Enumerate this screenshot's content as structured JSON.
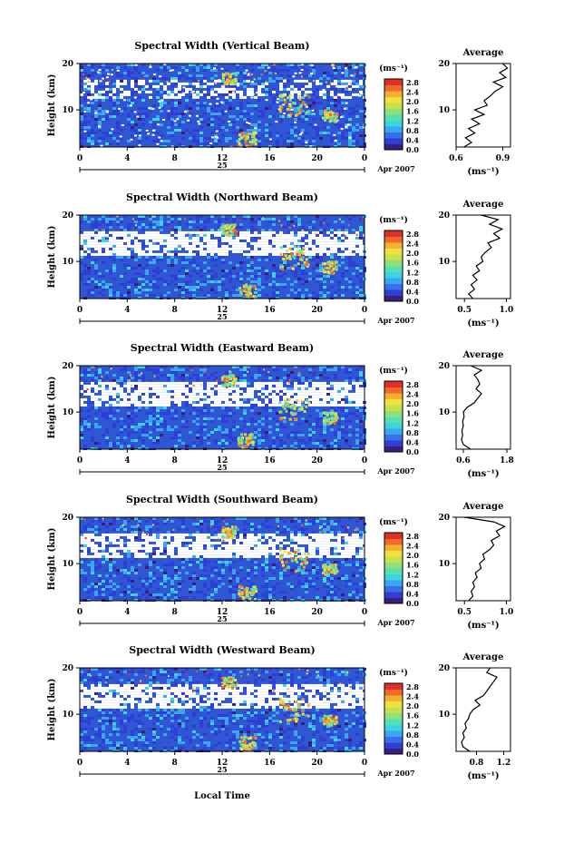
{
  "figure": {
    "xlabel_bottom": "Local Time",
    "colors": {
      "scale": [
        "#3a1f7a",
        "#2f3fd6",
        "#3a6fe6",
        "#3aa6f0",
        "#3fd2e0",
        "#55e0b0",
        "#8fe07a",
        "#c8e050",
        "#f0e040",
        "#f4b030",
        "#f06a2a",
        "#e0302a"
      ],
      "background_field": "#2f57d4",
      "line": "#000000"
    }
  },
  "chart_data": [
    {
      "type": "heatmap",
      "title": "Spectral Width (Vertical Beam)",
      "ylabel": "Height (km)",
      "yticks": [
        "20",
        "10"
      ],
      "xticks": [
        "0",
        "4",
        "8",
        "12",
        "16",
        "20",
        "0"
      ],
      "date_day": "25",
      "date_label": "Apr 2007",
      "xlim": [
        0,
        24
      ],
      "ylim": [
        2,
        20
      ],
      "colorbar": {
        "unit": "(ms⁻¹)",
        "ticks": [
          "2.8",
          "2.4",
          "2.0",
          "1.6",
          "1.2",
          "0.8",
          "0.4",
          "0.0"
        ]
      },
      "average_profile": {
        "title": "Average",
        "xlabel": "(ms⁻¹)",
        "xticks": [
          "0.6",
          "0.9"
        ],
        "xlim": [
          0.6,
          0.95
        ],
        "yticks": [
          "20",
          "10"
        ],
        "heights": [
          2,
          3,
          4,
          5,
          6,
          7,
          8,
          9,
          10,
          11,
          12,
          13,
          14,
          15,
          16,
          17,
          18,
          19,
          20
        ],
        "values": [
          0.65,
          0.7,
          0.66,
          0.72,
          0.68,
          0.75,
          0.7,
          0.78,
          0.72,
          0.8,
          0.78,
          0.82,
          0.85,
          0.9,
          0.84,
          0.92,
          0.88,
          0.93,
          0.9
        ]
      }
    },
    {
      "type": "heatmap",
      "title": "Spectral Width (Northward Beam)",
      "ylabel": "Height (km)",
      "yticks": [
        "20",
        "10"
      ],
      "xticks": [
        "0",
        "4",
        "8",
        "12",
        "16",
        "20",
        "0"
      ],
      "date_day": "25",
      "date_label": "Apr 2007",
      "xlim": [
        0,
        24
      ],
      "ylim": [
        2,
        20
      ],
      "colorbar": {
        "unit": "(ms⁻¹)",
        "ticks": [
          "2.8",
          "2.4",
          "2.0",
          "1.6",
          "1.2",
          "0.8",
          "0.4",
          "0.0"
        ]
      },
      "average_profile": {
        "title": "Average",
        "xlabel": "(ms⁻¹)",
        "xticks": [
          "0.5",
          "1.0"
        ],
        "xlim": [
          0.4,
          1.05
        ],
        "yticks": [
          "20",
          "10"
        ],
        "heights": [
          2,
          3,
          4,
          5,
          6,
          7,
          8,
          9,
          10,
          11,
          12,
          13,
          14,
          15,
          16,
          17,
          18,
          19,
          20
        ],
        "values": [
          0.6,
          0.55,
          0.62,
          0.58,
          0.65,
          0.6,
          0.68,
          0.64,
          0.72,
          0.7,
          0.75,
          0.82,
          0.78,
          0.92,
          0.85,
          0.95,
          0.8,
          0.9,
          0.7
        ]
      }
    },
    {
      "type": "heatmap",
      "title": "Spectral Width (Eastward Beam)",
      "ylabel": "Height (km)",
      "yticks": [
        "20",
        "10"
      ],
      "xticks": [
        "0",
        "4",
        "8",
        "12",
        "16",
        "20",
        "0"
      ],
      "date_day": "25",
      "date_label": "Apr 2007",
      "xlim": [
        0,
        24
      ],
      "ylim": [
        2,
        20
      ],
      "colorbar": {
        "unit": "(ms⁻¹)",
        "ticks": [
          "2.8",
          "2.4",
          "2.0",
          "1.6",
          "1.2",
          "0.8",
          "0.4",
          "0.0"
        ]
      },
      "average_profile": {
        "title": "Average",
        "xlabel": "(ms⁻¹)",
        "xticks": [
          "0.6",
          "1.8"
        ],
        "xlim": [
          0.4,
          1.9
        ],
        "yticks": [
          "20",
          "10"
        ],
        "heights": [
          2,
          3,
          4,
          5,
          6,
          7,
          8,
          9,
          10,
          11,
          12,
          13,
          14,
          15,
          16,
          17,
          18,
          19,
          20
        ],
        "values": [
          0.8,
          0.6,
          0.55,
          0.58,
          0.56,
          0.6,
          0.58,
          0.62,
          0.6,
          0.7,
          0.9,
          1.0,
          1.1,
          0.95,
          1.05,
          1.0,
          0.9,
          1.1,
          0.8
        ]
      }
    },
    {
      "type": "heatmap",
      "title": "Spectral Width (Southward Beam)",
      "ylabel": "Height (km)",
      "yticks": [
        "20",
        "10"
      ],
      "xticks": [
        "0",
        "4",
        "8",
        "12",
        "16",
        "20",
        "0"
      ],
      "date_day": "25",
      "date_label": "Apr 2007",
      "xlim": [
        0,
        24
      ],
      "ylim": [
        2,
        20
      ],
      "colorbar": {
        "unit": "(ms⁻¹)",
        "ticks": [
          "2.8",
          "2.4",
          "2.0",
          "1.6",
          "1.2",
          "0.8",
          "0.4",
          "0.0"
        ]
      },
      "average_profile": {
        "title": "Average",
        "xlabel": "(ms⁻¹)",
        "xticks": [
          "0.5",
          "1.0"
        ],
        "xlim": [
          0.4,
          1.05
        ],
        "yticks": [
          "20",
          "10"
        ],
        "heights": [
          2,
          3,
          4,
          5,
          6,
          7,
          8,
          9,
          10,
          11,
          12,
          13,
          14,
          15,
          16,
          17,
          18,
          19,
          20
        ],
        "values": [
          0.55,
          0.6,
          0.58,
          0.62,
          0.6,
          0.65,
          0.63,
          0.7,
          0.68,
          0.74,
          0.72,
          0.8,
          0.85,
          0.82,
          0.92,
          0.88,
          0.98,
          0.85,
          0.5
        ]
      }
    },
    {
      "type": "heatmap",
      "title": "Spectral Width (Westward Beam)",
      "ylabel": "Height (km)",
      "yticks": [
        "20",
        "10"
      ],
      "xticks": [
        "0",
        "4",
        "8",
        "12",
        "16",
        "20",
        "0"
      ],
      "date_day": "25",
      "date_label": "Apr 2007",
      "xlim": [
        0,
        24
      ],
      "ylim": [
        2,
        20
      ],
      "colorbar": {
        "unit": "(ms⁻¹)",
        "ticks": [
          "2.8",
          "2.4",
          "2.0",
          "1.6",
          "1.2",
          "0.8",
          "0.4",
          "0.0"
        ]
      },
      "average_profile": {
        "title": "Average",
        "xlabel": "(ms⁻¹)",
        "xticks": [
          "0.8",
          "1.2"
        ],
        "xlim": [
          0.5,
          1.3
        ],
        "yticks": [
          "20",
          "10"
        ],
        "heights": [
          2,
          3,
          4,
          5,
          6,
          7,
          8,
          9,
          10,
          11,
          12,
          13,
          14,
          15,
          16,
          17,
          18,
          19,
          20
        ],
        "values": [
          0.7,
          0.6,
          0.58,
          0.62,
          0.6,
          0.65,
          0.63,
          0.68,
          0.7,
          0.75,
          0.85,
          0.78,
          0.9,
          0.95,
          1.0,
          1.05,
          1.1,
          0.95,
          1.0
        ]
      }
    }
  ]
}
